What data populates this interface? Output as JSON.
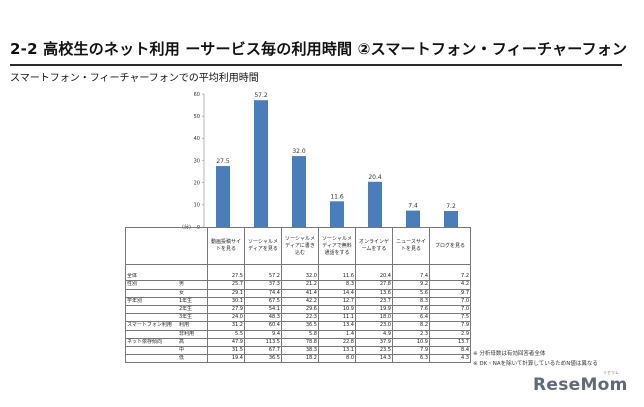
{
  "slide_title": "2-2 高校生のネット利用 ーサービス毎の利用時間 ②スマートフォン・フィーチャーフォン",
  "chart_subtitle": "スマートフォン・フィーチャーフォンでの平均利用時間",
  "chart_data": {
    "type": "bar",
    "title": "",
    "xlabel": "",
    "ylabel": "",
    "unit_label": "(分)",
    "ylim": [
      0,
      60
    ],
    "yticks": [
      "0",
      "10",
      "20",
      "30",
      "40",
      "50",
      "60"
    ],
    "grid": false,
    "bar_color": "#4a7ebb",
    "categories": [
      "動画投稿サイトを見る",
      "ソーシャルメディアを見る",
      "ソーシャルメディアに書き込む",
      "ソーシャルメディアで無料通話をする",
      "オンラインゲームをする",
      "ニュースサイトを見る",
      "ブログを見る"
    ],
    "values": [
      27.5,
      57.2,
      32.0,
      11.6,
      20.4,
      7.4,
      7.2
    ],
    "value_labels": [
      "27.5",
      "57.2",
      "32.0",
      "11.6",
      "20.4",
      "7.4",
      "7.2"
    ]
  },
  "table": {
    "headers": [
      "動画投稿サイトを見る",
      "ソーシャルメディアを見る",
      "ソーシャルメディアに書き込む",
      "ソーシャルメディアで無料通話をする",
      "オンラインゲームをする",
      "ニュースサイトを見る",
      "ブログを見る"
    ],
    "rows": [
      {
        "group": "",
        "sub": "",
        "values": [
          "",
          "",
          "",
          "",
          "",
          "",
          ""
        ]
      },
      {
        "group": "全体",
        "sub": "",
        "values": [
          "27.5",
          "57.2",
          "32.0",
          "11.6",
          "20.4",
          "7.4",
          "7.2"
        ]
      },
      {
        "group": "性別",
        "sub": "男",
        "values": [
          "25.7",
          "37.3",
          "21.2",
          "8.3",
          "27.8",
          "9.2",
          "4.2"
        ]
      },
      {
        "group": "",
        "sub": "女",
        "values": [
          "29.1",
          "74.4",
          "41.4",
          "14.4",
          "13.6",
          "5.6",
          "9.7"
        ]
      },
      {
        "group": "学年別",
        "sub": "1年生",
        "values": [
          "30.1",
          "67.5",
          "42.2",
          "12.7",
          "23.7",
          "8.3",
          "7.0"
        ]
      },
      {
        "group": "",
        "sub": "2年生",
        "values": [
          "27.9",
          "54.1",
          "29.6",
          "10.9",
          "19.9",
          "7.6",
          "7.0"
        ]
      },
      {
        "group": "",
        "sub": "3年生",
        "values": [
          "24.0",
          "48.3",
          "22.3",
          "11.1",
          "18.0",
          "6.4",
          "7.5"
        ]
      },
      {
        "group": "スマートフォン利用",
        "sub": "利用",
        "values": [
          "31.2",
          "60.4",
          "36.5",
          "13.4",
          "23.0",
          "8.2",
          "7.9"
        ]
      },
      {
        "group": "",
        "sub": "非利用",
        "values": [
          "5.5",
          "9.4",
          "5.8",
          "1.4",
          "4.9",
          "2.3",
          "2.9"
        ]
      },
      {
        "group": "ネット依存傾向",
        "sub": "高",
        "values": [
          "47.9",
          "113.5",
          "78.8",
          "22.8",
          "37.9",
          "10.9",
          "13.7"
        ]
      },
      {
        "group": "",
        "sub": "中",
        "values": [
          "31.5",
          "67.7",
          "38.3",
          "13.1",
          "23.5",
          "7.9",
          "8.4"
        ]
      },
      {
        "group": "",
        "sub": "低",
        "values": [
          "19.4",
          "36.5",
          "18.2",
          "8.0",
          "14.3",
          "6.3",
          "4.3"
        ]
      }
    ]
  },
  "notes": [
    "※ 分析母数は有効回答者全体",
    "※ DK・NAを除いて計算しているためN値は異なる"
  ],
  "logo": {
    "text": "ReseMom",
    "small": "リセマム"
  }
}
